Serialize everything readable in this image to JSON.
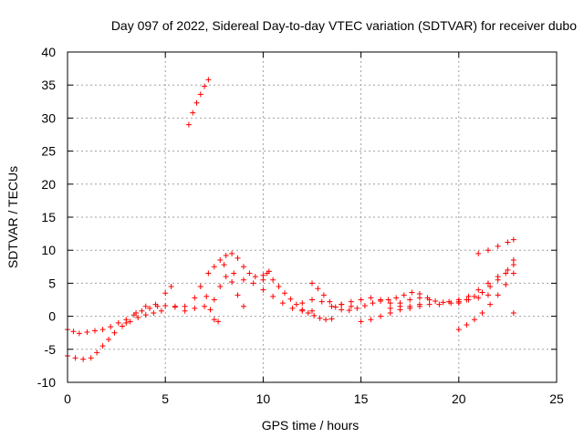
{
  "chart_data": {
    "type": "scatter",
    "title": "Day 097 of 2022, Sidereal Day-to-day VTEC variation (SDTVAR) for receiver dubo",
    "xlabel": "GPS time / hours",
    "ylabel": "SDTVAR / TECUs",
    "xlim": [
      0,
      25
    ],
    "ylim": [
      -10,
      40
    ],
    "xticks": [
      0,
      5,
      10,
      15,
      20,
      25
    ],
    "yticks": [
      -10,
      -5,
      0,
      5,
      10,
      15,
      20,
      25,
      30,
      35,
      40
    ],
    "xtick_labels": [
      "0",
      "5",
      "10",
      "15",
      "20",
      "25"
    ],
    "ytick_labels": [
      "-10",
      "-5",
      "0",
      "5",
      "10",
      "15",
      "20",
      "25",
      "30",
      "35",
      "40"
    ],
    "grid": true,
    "marker": "+",
    "color": "#ff0000",
    "series": [
      {
        "name": "SDTVAR",
        "points": [
          [
            0.0,
            -2.0
          ],
          [
            0.3,
            -2.3
          ],
          [
            0.6,
            -2.6
          ],
          [
            1.0,
            -2.4
          ],
          [
            1.4,
            -2.2
          ],
          [
            1.8,
            -2.0
          ],
          [
            2.2,
            -1.6
          ],
          [
            2.6,
            -1.0
          ],
          [
            3.0,
            -0.5
          ],
          [
            3.4,
            0.2
          ],
          [
            3.8,
            0.8
          ],
          [
            4.2,
            1.2
          ],
          [
            4.6,
            1.5
          ],
          [
            5.0,
            1.6
          ],
          [
            5.5,
            1.4
          ],
          [
            6.0,
            1.5
          ],
          [
            6.5,
            1.2
          ],
          [
            7.0,
            1.5
          ],
          [
            0.0,
            -6.0
          ],
          [
            0.4,
            -6.3
          ],
          [
            0.8,
            -6.5
          ],
          [
            1.2,
            -6.3
          ],
          [
            1.5,
            -5.5
          ],
          [
            1.8,
            -4.5
          ],
          [
            2.1,
            -3.5
          ],
          [
            2.4,
            -2.5
          ],
          [
            2.8,
            -1.5
          ],
          [
            3.2,
            -0.8
          ],
          [
            3.6,
            -0.2
          ],
          [
            4.0,
            0.2
          ],
          [
            4.4,
            0.5
          ],
          [
            4.8,
            0.8
          ],
          [
            3.0,
            -1.0
          ],
          [
            3.5,
            0.5
          ],
          [
            4.0,
            1.5
          ],
          [
            4.5,
            1.8
          ],
          [
            5.0,
            3.5
          ],
          [
            5.3,
            4.5
          ],
          [
            5.5,
            1.5
          ],
          [
            6.0,
            0.8
          ],
          [
            6.5,
            2.8
          ],
          [
            6.8,
            4.5
          ],
          [
            7.1,
            3.0
          ],
          [
            7.3,
            1.0
          ],
          [
            7.5,
            -0.5
          ],
          [
            7.7,
            -0.8
          ],
          [
            7.2,
            6.5
          ],
          [
            7.5,
            7.5
          ],
          [
            7.8,
            8.5
          ],
          [
            8.1,
            9.2
          ],
          [
            8.4,
            9.5
          ],
          [
            8.7,
            8.8
          ],
          [
            9.0,
            7.5
          ],
          [
            9.3,
            6.5
          ],
          [
            9.6,
            6.0
          ],
          [
            10.0,
            6.2
          ],
          [
            10.3,
            6.8
          ],
          [
            7.5,
            2.5
          ],
          [
            7.8,
            4.5
          ],
          [
            8.1,
            6.0
          ],
          [
            8.4,
            5.2
          ],
          [
            8.7,
            3.2
          ],
          [
            9.0,
            1.5
          ],
          [
            8.0,
            7.8
          ],
          [
            8.5,
            6.5
          ],
          [
            9.0,
            5.5
          ],
          [
            9.5,
            5.0
          ],
          [
            10.0,
            5.5
          ],
          [
            10.2,
            6.5
          ],
          [
            10.5,
            5.5
          ],
          [
            10.8,
            4.5
          ],
          [
            11.1,
            3.5
          ],
          [
            11.4,
            2.6
          ],
          [
            11.7,
            1.8
          ],
          [
            12.0,
            1.0
          ],
          [
            12.3,
            0.5
          ],
          [
            12.6,
            0.1
          ],
          [
            12.9,
            -0.3
          ],
          [
            13.2,
            -0.5
          ],
          [
            13.5,
            -0.4
          ],
          [
            10.0,
            4.0
          ],
          [
            10.5,
            3.0
          ],
          [
            11.0,
            2.0
          ],
          [
            11.5,
            1.2
          ],
          [
            12.0,
            0.8
          ],
          [
            12.5,
            0.8
          ],
          [
            12.5,
            5.0
          ],
          [
            12.8,
            4.2
          ],
          [
            13.1,
            3.2
          ],
          [
            13.4,
            2.2
          ],
          [
            13.7,
            1.4
          ],
          [
            14.0,
            1.0
          ],
          [
            14.4,
            0.9
          ],
          [
            14.8,
            1.2
          ],
          [
            15.2,
            1.6
          ],
          [
            15.6,
            2.0
          ],
          [
            16.0,
            2.3
          ],
          [
            16.4,
            2.5
          ],
          [
            16.8,
            2.8
          ],
          [
            17.2,
            3.2
          ],
          [
            17.6,
            3.6
          ],
          [
            18.0,
            3.4
          ],
          [
            18.4,
            2.8
          ],
          [
            18.8,
            2.3
          ],
          [
            19.2,
            2.1
          ],
          [
            19.6,
            2.0
          ],
          [
            20.0,
            2.2
          ],
          [
            20.4,
            2.5
          ],
          [
            20.8,
            3.0
          ],
          [
            21.2,
            3.6
          ],
          [
            21.6,
            4.5
          ],
          [
            22.0,
            5.5
          ],
          [
            22.4,
            6.5
          ],
          [
            22.8,
            7.8
          ],
          [
            12.0,
            2.0
          ],
          [
            12.5,
            2.5
          ],
          [
            13.0,
            2.2
          ],
          [
            13.5,
            1.5
          ],
          [
            14.0,
            1.8
          ],
          [
            14.5,
            1.5
          ],
          [
            14.0,
            1.8
          ],
          [
            14.5,
            2.2
          ],
          [
            15.0,
            2.5
          ],
          [
            15.5,
            2.8
          ],
          [
            16.0,
            2.5
          ],
          [
            16.5,
            2.0
          ],
          [
            17.0,
            1.5
          ],
          [
            17.5,
            1.2
          ],
          [
            18.0,
            1.5
          ],
          [
            18.5,
            1.8
          ],
          [
            15.0,
            -0.8
          ],
          [
            15.5,
            -0.5
          ],
          [
            16.0,
            0.0
          ],
          [
            16.5,
            0.5
          ],
          [
            17.0,
            1.0
          ],
          [
            17.5,
            1.5
          ],
          [
            18.0,
            1.8
          ],
          [
            16.5,
            1.2
          ],
          [
            17.0,
            2.0
          ],
          [
            17.5,
            2.5
          ],
          [
            18.0,
            2.8
          ],
          [
            18.5,
            2.5
          ],
          [
            19.0,
            1.8
          ],
          [
            19.5,
            2.2
          ],
          [
            20.0,
            2.0
          ],
          [
            20.5,
            2.5
          ],
          [
            21.0,
            2.8
          ],
          [
            21.5,
            3.2
          ],
          [
            20.0,
            -2.0
          ],
          [
            20.4,
            -1.3
          ],
          [
            20.8,
            -0.5
          ],
          [
            21.2,
            0.5
          ],
          [
            21.6,
            1.8
          ],
          [
            22.0,
            3.2
          ],
          [
            22.4,
            4.8
          ],
          [
            22.8,
            6.5
          ],
          [
            20.0,
            2.5
          ],
          [
            20.5,
            3.0
          ],
          [
            21.0,
            4.0
          ],
          [
            21.5,
            5.0
          ],
          [
            22.0,
            6.0
          ],
          [
            22.5,
            7.0
          ],
          [
            22.8,
            8.5
          ],
          [
            21.0,
            9.5
          ],
          [
            21.5,
            10.0
          ],
          [
            22.0,
            10.6
          ],
          [
            22.5,
            11.2
          ],
          [
            22.8,
            11.6
          ],
          [
            6.2,
            29.0
          ],
          [
            6.4,
            30.8
          ],
          [
            6.6,
            32.3
          ],
          [
            6.8,
            33.6
          ],
          [
            7.0,
            34.8
          ],
          [
            7.2,
            35.8
          ],
          [
            22.8,
            0.5
          ]
        ]
      }
    ]
  }
}
